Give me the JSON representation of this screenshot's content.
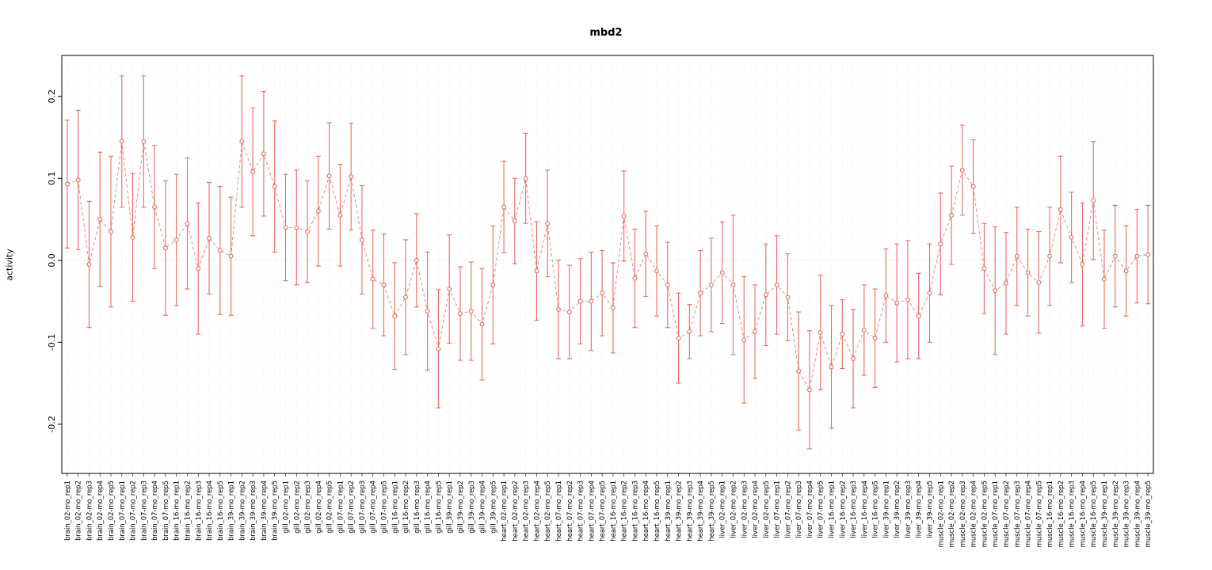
{
  "chart_data": {
    "type": "scatter",
    "title": "mbd2",
    "xlabel": "",
    "ylabel": "activity",
    "ylim": [
      -0.26,
      0.25
    ],
    "yticks": [
      -0.2,
      -0.1,
      0.0,
      0.1,
      0.2
    ],
    "grid": "vertical-dotted-per-category, dotted-zero-line",
    "legend": "none",
    "marker": "open-circle",
    "line_style": "dashed",
    "error_bars": true,
    "colors": {
      "accent": "#e96a5f",
      "grid": "#e3e3e3",
      "zero_line": "#cfcfcf",
      "axis": "#000000"
    },
    "categories": [
      "brain_02-mo_rep1",
      "brain_02-mo_rep2",
      "brain_02-mo_rep3",
      "brain_02-mo_rep4",
      "brain_02-mo_rep5",
      "brain_07-mo_rep1",
      "brain_07-mo_rep2",
      "brain_07-mo_rep3",
      "brain_07-mo_rep4",
      "brain_07-mo_rep5",
      "brain_16-mo_rep1",
      "brain_16-mo_rep2",
      "brain_16-mo_rep3",
      "brain_16-mo_rep4",
      "brain_16-mo_rep5",
      "brain_39-mo_rep1",
      "brain_39-mo_rep2",
      "brain_39-mo_rep3",
      "brain_39-mo_rep4",
      "brain_39-mo_rep5",
      "gill_02-mo_rep1",
      "gill_02-mo_rep2",
      "gill_02-mo_rep3",
      "gill_02-mo_rep4",
      "gill_02-mo_rep5",
      "gill_07-mo_rep1",
      "gill_07-mo_rep2",
      "gill_07-mo_rep3",
      "gill_07-mo_rep4",
      "gill_07-mo_rep5",
      "gill_16-mo_rep1",
      "gill_16-mo_rep2",
      "gill_16-mo_rep3",
      "gill_16-mo_rep4",
      "gill_16-mo_rep5",
      "gill_39-mo_rep1",
      "gill_39-mo_rep2",
      "gill_39-mo_rep3",
      "gill_39-mo_rep4",
      "gill_39-mo_rep5",
      "heart_02-mo_rep1",
      "heart_02-mo_rep2",
      "heart_02-mo_rep3",
      "heart_02-mo_rep4",
      "heart_02-mo_rep5",
      "heart_07-mo_rep1",
      "heart_07-mo_rep2",
      "heart_07-mo_rep3",
      "heart_07-mo_rep4",
      "heart_07-mo_rep5",
      "heart_16-mo_rep1",
      "heart_16-mo_rep2",
      "heart_16-mo_rep3",
      "heart_16-mo_rep4",
      "heart_16-mo_rep5",
      "heart_39-mo_rep1",
      "heart_39-mo_rep2",
      "heart_39-mo_rep3",
      "heart_39-mo_rep4",
      "heart_39-mo_rep5",
      "liver_02-mo_rep1",
      "liver_02-mo_rep2",
      "liver_02-mo_rep3",
      "liver_02-mo_rep4",
      "liver_02-mo_rep5",
      "liver_07-mo_rep1",
      "liver_07-mo_rep2",
      "liver_07-mo_rep3",
      "liver_07-mo_rep4",
      "liver_07-mo_rep5",
      "liver_16-mo_rep1",
      "liver_16-mo_rep2",
      "liver_16-mo_rep3",
      "liver_16-mo_rep4",
      "liver_16-mo_rep5",
      "liver_39-mo_rep1",
      "liver_39-mo_rep2",
      "liver_39-mo_rep3",
      "liver_39-mo_rep4",
      "liver_39-mo_rep5",
      "muscle_02-mo_rep1",
      "muscle_02-mo_rep2",
      "muscle_02-mo_rep3",
      "muscle_02-mo_rep4",
      "muscle_02-mo_rep5",
      "muscle_07-mo_rep1",
      "muscle_07-mo_rep2",
      "muscle_07-mo_rep3",
      "muscle_07-mo_rep4",
      "muscle_07-mo_rep5",
      "muscle_16-mo_rep1",
      "muscle_16-mo_rep2",
      "muscle_16-mo_rep3",
      "muscle_16-mo_rep4",
      "muscle_16-mo_rep5",
      "muscle_39-mo_rep1",
      "muscle_39-mo_rep2",
      "muscle_39-mo_rep3",
      "muscle_39-mo_rep4",
      "muscle_39-mo_rep5"
    ],
    "values": [
      0.093,
      0.098,
      -0.005,
      0.05,
      0.035,
      0.145,
      0.028,
      0.145,
      0.065,
      0.015,
      0.025,
      0.045,
      -0.01,
      0.027,
      0.012,
      0.005,
      0.145,
      0.108,
      0.13,
      0.09,
      0.04,
      0.04,
      0.035,
      0.06,
      0.103,
      0.055,
      0.102,
      0.025,
      -0.023,
      -0.03,
      -0.068,
      -0.045,
      0.0,
      -0.062,
      -0.108,
      -0.035,
      -0.065,
      -0.062,
      -0.078,
      -0.03,
      0.065,
      0.048,
      0.1,
      -0.013,
      0.045,
      -0.06,
      -0.063,
      -0.05,
      -0.05,
      -0.04,
      -0.058,
      0.054,
      -0.022,
      0.008,
      -0.013,
      -0.03,
      -0.095,
      -0.087,
      -0.04,
      -0.03,
      -0.015,
      -0.03,
      -0.097,
      -0.087,
      -0.042,
      -0.03,
      -0.045,
      -0.135,
      -0.158,
      -0.088,
      -0.13,
      -0.09,
      -0.12,
      -0.085,
      -0.095,
      -0.043,
      -0.052,
      -0.048,
      -0.068,
      -0.04,
      0.02,
      0.055,
      0.11,
      0.09,
      -0.01,
      -0.037,
      -0.028,
      0.005,
      -0.015,
      -0.027,
      0.005,
      0.062,
      0.028,
      -0.005,
      0.073,
      -0.023,
      0.005,
      -0.013,
      0.005,
      0.007
    ],
    "errors": [
      0.078,
      0.085,
      0.077,
      0.082,
      0.092,
      0.08,
      0.078,
      0.08,
      0.075,
      0.082,
      0.08,
      0.08,
      0.08,
      0.068,
      0.078,
      0.072,
      0.08,
      0.078,
      0.076,
      0.08,
      0.065,
      0.07,
      0.062,
      0.067,
      0.065,
      0.062,
      0.065,
      0.066,
      0.06,
      0.062,
      0.065,
      0.07,
      0.057,
      0.072,
      0.072,
      0.066,
      0.057,
      0.06,
      0.068,
      0.072,
      0.056,
      0.052,
      0.055,
      0.06,
      0.065,
      0.06,
      0.057,
      0.052,
      0.06,
      0.052,
      0.055,
      0.055,
      0.06,
      0.052,
      0.055,
      0.052,
      0.055,
      0.033,
      0.052,
      0.057,
      0.062,
      0.085,
      0.077,
      0.057,
      0.062,
      0.06,
      0.053,
      0.072,
      0.072,
      0.07,
      0.075,
      0.042,
      0.06,
      0.055,
      0.06,
      0.057,
      0.072,
      0.072,
      0.052,
      0.06,
      0.062,
      0.06,
      0.055,
      0.057,
      0.055,
      0.078,
      0.062,
      0.06,
      0.053,
      0.062,
      0.06,
      0.065,
      0.055,
      0.075,
      0.072,
      0.06,
      0.062,
      0.055,
      0.057,
      0.06
    ]
  }
}
